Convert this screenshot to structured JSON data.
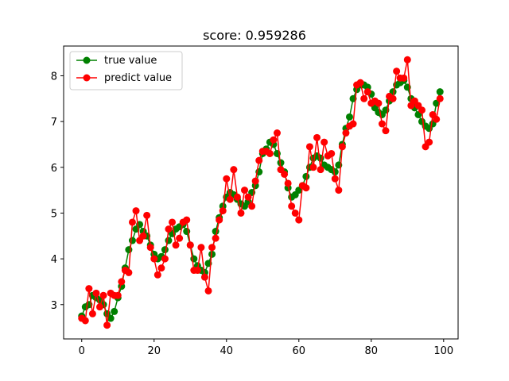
{
  "chart_data": {
    "type": "line",
    "title": "score: 0.959286",
    "xlabel": "",
    "ylabel": "",
    "xlim": [
      -5,
      104
    ],
    "ylim": [
      2.25,
      8.65
    ],
    "xticks": [
      0,
      20,
      40,
      60,
      80,
      100
    ],
    "yticks": [
      3,
      4,
      5,
      6,
      7,
      8
    ],
    "grid": false,
    "legend_position": "upper-left",
    "series": [
      {
        "name": "true value",
        "color": "#008000",
        "values": [
          2.75,
          2.95,
          3.0,
          3.2,
          3.15,
          3.1,
          3.0,
          2.8,
          2.7,
          2.85,
          3.15,
          3.4,
          3.8,
          4.2,
          4.4,
          4.65,
          4.75,
          4.6,
          4.5,
          4.3,
          4.1,
          4.0,
          4.05,
          4.2,
          4.4,
          4.55,
          4.65,
          4.7,
          4.75,
          4.6,
          4.3,
          4.0,
          3.85,
          3.75,
          3.7,
          3.9,
          4.1,
          4.6,
          4.9,
          5.15,
          5.35,
          5.45,
          5.4,
          5.3,
          5.2,
          5.15,
          5.25,
          5.45,
          5.6,
          5.9,
          6.3,
          6.4,
          6.55,
          6.5,
          6.3,
          6.1,
          5.9,
          5.55,
          5.35,
          5.4,
          5.5,
          5.6,
          5.8,
          6.0,
          6.2,
          6.25,
          6.2,
          6.05,
          6.0,
          5.95,
          5.9,
          6.05,
          6.5,
          6.85,
          7.1,
          7.5,
          7.7,
          7.8,
          7.8,
          7.75,
          7.6,
          7.3,
          7.2,
          7.15,
          7.25,
          7.45,
          7.65,
          7.8,
          7.85,
          7.9,
          7.75,
          7.5,
          7.3,
          7.15,
          7.0,
          6.9,
          6.85,
          6.95,
          7.4,
          7.65
        ]
      },
      {
        "name": "predict value",
        "color": "#ff0000",
        "values": [
          2.7,
          2.65,
          3.35,
          2.8,
          3.25,
          2.95,
          3.2,
          2.55,
          3.25,
          3.2,
          3.2,
          3.5,
          3.75,
          3.7,
          4.8,
          5.05,
          4.4,
          4.5,
          4.95,
          4.25,
          4.0,
          3.65,
          3.8,
          4.0,
          4.65,
          4.8,
          4.3,
          4.45,
          4.8,
          4.85,
          4.3,
          3.75,
          3.75,
          4.25,
          3.6,
          3.3,
          4.25,
          4.45,
          4.85,
          5.05,
          5.75,
          5.3,
          5.95,
          5.35,
          5.0,
          5.5,
          5.35,
          5.15,
          5.7,
          6.15,
          6.35,
          6.35,
          6.3,
          6.6,
          6.75,
          5.95,
          5.85,
          5.65,
          5.15,
          5.0,
          4.85,
          5.6,
          5.55,
          6.45,
          6.0,
          6.65,
          5.95,
          6.55,
          6.25,
          6.3,
          5.75,
          5.5,
          6.45,
          6.75,
          6.9,
          6.95,
          7.8,
          7.85,
          7.5,
          7.65,
          7.4,
          7.45,
          7.4,
          6.95,
          6.8,
          7.55,
          7.5,
          8.1,
          7.95,
          7.95,
          8.35,
          7.35,
          7.45,
          7.35,
          7.25,
          6.45,
          6.55,
          7.15,
          7.05,
          7.5
        ]
      }
    ]
  }
}
